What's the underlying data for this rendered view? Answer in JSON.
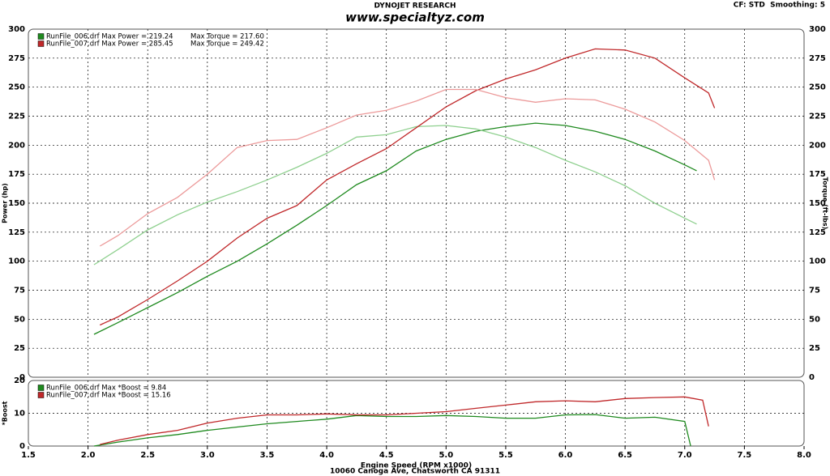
{
  "header": {
    "brand": "DYNOJET RESEARCH",
    "site": "www.specialtyz.com",
    "settings": "CF: STD  Smoothing: 5",
    "footer": "10060 Canoga Ave, Chatsworth CA 91311"
  },
  "chart_data": [
    {
      "type": "line",
      "ylabel": "Power (hp)",
      "y2label": "Torque (ft-lbs)",
      "xlim": [
        1.5,
        8.0
      ],
      "ylim": [
        0,
        300
      ],
      "yticks": [
        0,
        25,
        50,
        75,
        100,
        125,
        150,
        175,
        200,
        225,
        250,
        275,
        300
      ],
      "y2lim": [
        0,
        300
      ],
      "y2ticks": [
        0,
        25,
        50,
        75,
        100,
        125,
        150,
        175,
        200,
        225,
        250,
        275,
        300
      ],
      "grid": true,
      "legend": [
        {
          "label": "RunFile_006.drf Max Power = 219.24",
          "label2": "Max Torque = 217.60",
          "color": "#1f8a1f"
        },
        {
          "label": "RunFile_007.drf Max Power = 285.45",
          "label2": "Max Torque = 249.42",
          "color": "#c0282a"
        }
      ],
      "series": [
        {
          "color": "#1f8a1f",
          "x": [
            2.05,
            2.25,
            2.5,
            2.75,
            3.0,
            3.25,
            3.5,
            3.75,
            4.0,
            4.25,
            4.5,
            4.75,
            5.0,
            5.25,
            5.5,
            5.75,
            6.0,
            6.25,
            6.5,
            6.75,
            7.0,
            7.1
          ],
          "values": [
            37,
            47,
            60,
            73,
            87,
            100,
            115,
            131,
            148,
            166,
            178,
            195,
            205,
            212,
            216,
            219,
            217,
            212,
            205,
            195,
            183,
            178
          ]
        },
        {
          "color": "#8fd08f",
          "axis": "y2",
          "x": [
            2.05,
            2.25,
            2.5,
            2.75,
            3.0,
            3.25,
            3.5,
            3.75,
            4.0,
            4.25,
            4.5,
            4.75,
            5.0,
            5.25,
            5.5,
            5.75,
            6.0,
            6.25,
            6.5,
            6.75,
            7.0,
            7.1
          ],
          "values": [
            97,
            110,
            127,
            140,
            151,
            160,
            170,
            181,
            193,
            207,
            209,
            216,
            217,
            214,
            207,
            198,
            187,
            177,
            165,
            150,
            137,
            132
          ]
        },
        {
          "color": "#c0282a",
          "x": [
            2.1,
            2.25,
            2.5,
            2.75,
            3.0,
            3.25,
            3.5,
            3.75,
            4.0,
            4.25,
            4.5,
            4.75,
            5.0,
            5.25,
            5.5,
            5.75,
            6.0,
            6.25,
            6.5,
            6.75,
            7.0,
            7.2,
            7.25
          ],
          "values": [
            45,
            52,
            67,
            83,
            100,
            120,
            137,
            148,
            170,
            184,
            197,
            215,
            233,
            247,
            257,
            265,
            275,
            283,
            282,
            275,
            258,
            245,
            232
          ]
        },
        {
          "color": "#ec9a9a",
          "axis": "y2",
          "x": [
            2.1,
            2.25,
            2.5,
            2.75,
            3.0,
            3.25,
            3.5,
            3.75,
            4.0,
            4.25,
            4.5,
            4.75,
            5.0,
            5.25,
            5.5,
            5.75,
            6.0,
            6.25,
            6.5,
            6.75,
            7.0,
            7.2,
            7.25
          ],
          "values": [
            113,
            122,
            141,
            155,
            175,
            198,
            204,
            205,
            215,
            226,
            230,
            238,
            248,
            248,
            241,
            237,
            240,
            239,
            231,
            220,
            204,
            187,
            170
          ]
        }
      ]
    },
    {
      "type": "line",
      "ylabel": "*Boost",
      "xlabel": "Engine Speed (RPM x1000)",
      "xlim": [
        1.5,
        8.0
      ],
      "xticks": [
        1.5,
        {
          "value": 2,
          "label": "2.0"
        },
        2.5,
        {
          "value": 3,
          "label": "3.0"
        },
        3.5,
        {
          "value": 4,
          "label": "4.0"
        },
        4.5,
        {
          "value": 5,
          "label": "5.0"
        },
        5.5,
        {
          "value": 6,
          "label": "6.0"
        },
        6.5,
        {
          "value": 7,
          "label": "7.0"
        },
        7.5,
        {
          "value": 8,
          "label": "8.0"
        }
      ],
      "ylim": [
        0,
        20
      ],
      "yticks": [
        0,
        10,
        20
      ],
      "grid": true,
      "legend": [
        {
          "label": "RunFile_006.drf Max *Boost = 9.84",
          "color": "#1f8a1f"
        },
        {
          "label": "RunFile_007.drf Max *Boost = 15.16",
          "color": "#c0282a"
        }
      ],
      "series": [
        {
          "color": "#1f8a1f",
          "x": [
            2.05,
            2.25,
            2.5,
            2.75,
            3.0,
            3.25,
            3.5,
            3.75,
            4.0,
            4.25,
            4.5,
            4.75,
            5.0,
            5.25,
            5.5,
            5.75,
            6.0,
            6.25,
            6.5,
            6.75,
            7.0,
            7.05
          ],
          "values": [
            0,
            1.2,
            2.5,
            3.5,
            4.8,
            5.8,
            6.8,
            7.5,
            8.2,
            9.3,
            9,
            9,
            9.3,
            9,
            8.5,
            8.5,
            9.5,
            9.6,
            8.5,
            8.8,
            7.5,
            0
          ]
        },
        {
          "color": "#c0282a",
          "x": [
            2.1,
            2.25,
            2.5,
            2.75,
            3.0,
            3.25,
            3.5,
            3.75,
            4.0,
            4.25,
            4.5,
            4.75,
            5.0,
            5.25,
            5.5,
            5.75,
            6.0,
            6.25,
            6.5,
            6.75,
            7.0,
            7.15,
            7.2
          ],
          "values": [
            0.5,
            1.8,
            3.5,
            4.8,
            7,
            8.5,
            9.5,
            9.5,
            9.8,
            9.5,
            9.5,
            10,
            10.5,
            11.5,
            12.5,
            13.5,
            13.8,
            13.5,
            14.5,
            14.8,
            15,
            14,
            6
          ]
        }
      ]
    }
  ]
}
